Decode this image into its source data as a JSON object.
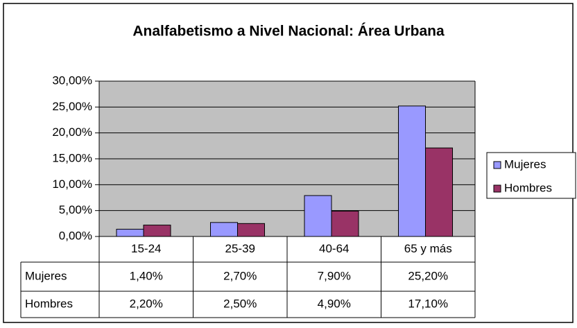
{
  "chart_data": {
    "type": "bar",
    "title": "Analfabetismo a Nivel Nacional: Área Urbana",
    "categories": [
      "15-24",
      "25-39",
      "40-64",
      "65 y más"
    ],
    "series": [
      {
        "name": "Mujeres",
        "color": "#9999ff",
        "values": [
          1.4,
          2.7,
          7.9,
          25.2
        ],
        "value_labels": [
          "1,40%",
          "2,70%",
          "7,90%",
          "25,20%"
        ]
      },
      {
        "name": "Hombres",
        "color": "#993366",
        "values": [
          2.2,
          2.5,
          4.9,
          17.1
        ],
        "value_labels": [
          "2,20%",
          "2,50%",
          "4,90%",
          "17,10%"
        ]
      }
    ],
    "ylim": [
      0,
      30
    ],
    "yticks": [
      {
        "value": 0,
        "label": "0,00%"
      },
      {
        "value": 5,
        "label": "5,00%"
      },
      {
        "value": 10,
        "label": "10,00%"
      },
      {
        "value": 15,
        "label": "15,00%"
      },
      {
        "value": 20,
        "label": "20,00%"
      },
      {
        "value": 25,
        "label": "25,00%"
      },
      {
        "value": 30,
        "label": "30,00%"
      }
    ],
    "grid": true,
    "legend": "right",
    "plot_background": "#c0c0c0"
  }
}
